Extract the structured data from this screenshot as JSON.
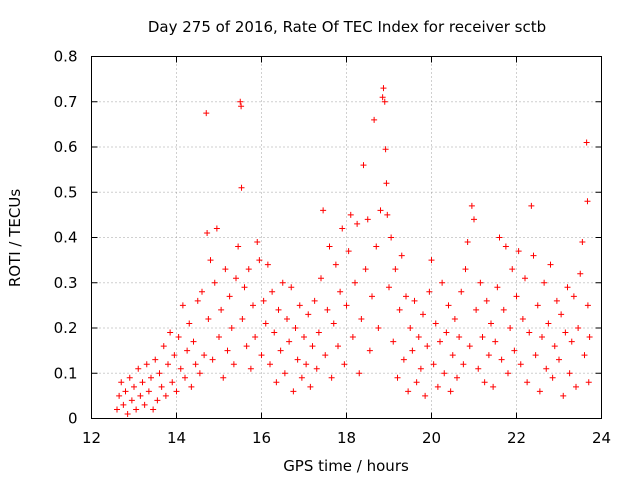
{
  "chart_data": {
    "type": "scatter",
    "title": "Day 275 of 2016, Rate Of TEC Index for receiver sctb",
    "xlabel": "GPS time / hours",
    "ylabel": "ROTI / TECUs",
    "xlim": [
      12,
      24
    ],
    "ylim": [
      0,
      0.8
    ],
    "xticks": [
      12,
      14,
      16,
      18,
      20,
      22,
      24
    ],
    "xtick_labels": [
      "12",
      "14",
      "16",
      "18",
      "20",
      "22",
      "24"
    ],
    "yticks": [
      0,
      0.1,
      0.2,
      0.3,
      0.4,
      0.5,
      0.6,
      0.7,
      0.8
    ],
    "ytick_labels": [
      "0",
      "0.1",
      "0.2",
      "0.3",
      "0.4",
      "0.5",
      "0.6",
      "0.7",
      "0.8"
    ],
    "grid": true,
    "marker": "+",
    "series": [
      {
        "name": "ROTI",
        "color": "#ff0000",
        "points": [
          [
            12.6,
            0.02
          ],
          [
            12.65,
            0.05
          ],
          [
            12.7,
            0.08
          ],
          [
            12.75,
            0.03
          ],
          [
            12.8,
            0.06
          ],
          [
            12.85,
            0.01
          ],
          [
            12.9,
            0.09
          ],
          [
            12.95,
            0.04
          ],
          [
            13.0,
            0.07
          ],
          [
            13.05,
            0.02
          ],
          [
            13.1,
            0.11
          ],
          [
            13.15,
            0.05
          ],
          [
            13.2,
            0.08
          ],
          [
            13.25,
            0.03
          ],
          [
            13.3,
            0.12
          ],
          [
            13.35,
            0.06
          ],
          [
            13.4,
            0.09
          ],
          [
            13.45,
            0.02
          ],
          [
            13.5,
            0.13
          ],
          [
            13.55,
            0.04
          ],
          [
            13.6,
            0.1
          ],
          [
            13.65,
            0.07
          ],
          [
            13.7,
            0.16
          ],
          [
            13.75,
            0.05
          ],
          [
            13.8,
            0.12
          ],
          [
            13.85,
            0.19
          ],
          [
            13.9,
            0.08
          ],
          [
            13.95,
            0.14
          ],
          [
            14.0,
            0.06
          ],
          [
            14.05,
            0.18
          ],
          [
            14.1,
            0.11
          ],
          [
            14.15,
            0.25
          ],
          [
            14.2,
            0.09
          ],
          [
            14.25,
            0.15
          ],
          [
            14.3,
            0.21
          ],
          [
            14.35,
            0.07
          ],
          [
            14.4,
            0.17
          ],
          [
            14.45,
            0.12
          ],
          [
            14.5,
            0.26
          ],
          [
            14.55,
            0.1
          ],
          [
            14.6,
            0.28
          ],
          [
            14.65,
            0.14
          ],
          [
            14.7,
            0.675
          ],
          [
            14.72,
            0.41
          ],
          [
            14.75,
            0.22
          ],
          [
            14.8,
            0.35
          ],
          [
            14.85,
            0.13
          ],
          [
            14.9,
            0.3
          ],
          [
            14.95,
            0.42
          ],
          [
            15.0,
            0.18
          ],
          [
            15.05,
            0.24
          ],
          [
            15.1,
            0.09
          ],
          [
            15.15,
            0.33
          ],
          [
            15.2,
            0.15
          ],
          [
            15.25,
            0.27
          ],
          [
            15.3,
            0.2
          ],
          [
            15.35,
            0.12
          ],
          [
            15.4,
            0.31
          ],
          [
            15.45,
            0.38
          ],
          [
            15.5,
            0.7
          ],
          [
            15.52,
            0.69
          ],
          [
            15.53,
            0.51
          ],
          [
            15.55,
            0.22
          ],
          [
            15.6,
            0.29
          ],
          [
            15.65,
            0.16
          ],
          [
            15.7,
            0.33
          ],
          [
            15.75,
            0.11
          ],
          [
            15.8,
            0.25
          ],
          [
            15.85,
            0.18
          ],
          [
            15.9,
            0.39
          ],
          [
            15.95,
            0.35
          ],
          [
            16.0,
            0.14
          ],
          [
            16.05,
            0.26
          ],
          [
            16.1,
            0.21
          ],
          [
            16.15,
            0.34
          ],
          [
            16.2,
            0.12
          ],
          [
            16.25,
            0.28
          ],
          [
            16.3,
            0.19
          ],
          [
            16.35,
            0.08
          ],
          [
            16.4,
            0.24
          ],
          [
            16.45,
            0.15
          ],
          [
            16.5,
            0.3
          ],
          [
            16.55,
            0.1
          ],
          [
            16.6,
            0.22
          ],
          [
            16.65,
            0.17
          ],
          [
            16.7,
            0.29
          ],
          [
            16.75,
            0.06
          ],
          [
            16.8,
            0.2
          ],
          [
            16.85,
            0.13
          ],
          [
            16.9,
            0.25
          ],
          [
            16.95,
            0.09
          ],
          [
            17.0,
            0.18
          ],
          [
            17.05,
            0.12
          ],
          [
            17.1,
            0.23
          ],
          [
            17.15,
            0.07
          ],
          [
            17.2,
            0.16
          ],
          [
            17.25,
            0.26
          ],
          [
            17.3,
            0.11
          ],
          [
            17.35,
            0.19
          ],
          [
            17.4,
            0.31
          ],
          [
            17.45,
            0.46
          ],
          [
            17.5,
            0.14
          ],
          [
            17.55,
            0.24
          ],
          [
            17.6,
            0.38
          ],
          [
            17.65,
            0.09
          ],
          [
            17.7,
            0.21
          ],
          [
            17.75,
            0.34
          ],
          [
            17.8,
            0.16
          ],
          [
            17.85,
            0.28
          ],
          [
            17.9,
            0.42
          ],
          [
            17.95,
            0.12
          ],
          [
            18.0,
            0.25
          ],
          [
            18.05,
            0.37
          ],
          [
            18.1,
            0.45
          ],
          [
            18.15,
            0.18
          ],
          [
            18.2,
            0.3
          ],
          [
            18.25,
            0.43
          ],
          [
            18.3,
            0.1
          ],
          [
            18.35,
            0.22
          ],
          [
            18.4,
            0.56
          ],
          [
            18.45,
            0.33
          ],
          [
            18.5,
            0.44
          ],
          [
            18.55,
            0.15
          ],
          [
            18.6,
            0.27
          ],
          [
            18.65,
            0.66
          ],
          [
            18.7,
            0.38
          ],
          [
            18.75,
            0.2
          ],
          [
            18.8,
            0.46
          ],
          [
            18.85,
            0.71
          ],
          [
            18.87,
            0.73
          ],
          [
            18.9,
            0.7
          ],
          [
            18.92,
            0.595
          ],
          [
            18.94,
            0.52
          ],
          [
            18.96,
            0.45
          ],
          [
            19.0,
            0.29
          ],
          [
            19.05,
            0.4
          ],
          [
            19.1,
            0.17
          ],
          [
            19.15,
            0.33
          ],
          [
            19.2,
            0.09
          ],
          [
            19.25,
            0.24
          ],
          [
            19.3,
            0.36
          ],
          [
            19.35,
            0.13
          ],
          [
            19.4,
            0.27
          ],
          [
            19.45,
            0.06
          ],
          [
            19.5,
            0.2
          ],
          [
            19.55,
            0.15
          ],
          [
            19.6,
            0.26
          ],
          [
            19.65,
            0.08
          ],
          [
            19.7,
            0.18
          ],
          [
            19.75,
            0.11
          ],
          [
            19.8,
            0.23
          ],
          [
            19.85,
            0.05
          ],
          [
            19.9,
            0.16
          ],
          [
            19.95,
            0.28
          ],
          [
            20.0,
            0.35
          ],
          [
            20.05,
            0.12
          ],
          [
            20.1,
            0.21
          ],
          [
            20.15,
            0.07
          ],
          [
            20.2,
            0.17
          ],
          [
            20.25,
            0.3
          ],
          [
            20.3,
            0.1
          ],
          [
            20.35,
            0.19
          ],
          [
            20.4,
            0.25
          ],
          [
            20.45,
            0.06
          ],
          [
            20.5,
            0.14
          ],
          [
            20.55,
            0.22
          ],
          [
            20.6,
            0.09
          ],
          [
            20.65,
            0.18
          ],
          [
            20.7,
            0.28
          ],
          [
            20.75,
            0.12
          ],
          [
            20.8,
            0.33
          ],
          [
            20.85,
            0.39
          ],
          [
            20.9,
            0.16
          ],
          [
            20.95,
            0.47
          ],
          [
            21.0,
            0.44
          ],
          [
            21.05,
            0.24
          ],
          [
            21.1,
            0.11
          ],
          [
            21.15,
            0.3
          ],
          [
            21.2,
            0.18
          ],
          [
            21.25,
            0.08
          ],
          [
            21.3,
            0.26
          ],
          [
            21.35,
            0.14
          ],
          [
            21.4,
            0.21
          ],
          [
            21.45,
            0.07
          ],
          [
            21.5,
            0.17
          ],
          [
            21.55,
            0.29
          ],
          [
            21.6,
            0.4
          ],
          [
            21.65,
            0.13
          ],
          [
            21.7,
            0.24
          ],
          [
            21.75,
            0.38
          ],
          [
            21.8,
            0.1
          ],
          [
            21.85,
            0.2
          ],
          [
            21.9,
            0.33
          ],
          [
            21.95,
            0.15
          ],
          [
            22.0,
            0.27
          ],
          [
            22.05,
            0.37
          ],
          [
            22.1,
            0.12
          ],
          [
            22.15,
            0.22
          ],
          [
            22.2,
            0.31
          ],
          [
            22.25,
            0.08
          ],
          [
            22.3,
            0.19
          ],
          [
            22.35,
            0.47
          ],
          [
            22.4,
            0.36
          ],
          [
            22.45,
            0.14
          ],
          [
            22.5,
            0.25
          ],
          [
            22.55,
            0.06
          ],
          [
            22.6,
            0.18
          ],
          [
            22.65,
            0.3
          ],
          [
            22.7,
            0.11
          ],
          [
            22.75,
            0.21
          ],
          [
            22.8,
            0.34
          ],
          [
            22.85,
            0.09
          ],
          [
            22.9,
            0.16
          ],
          [
            22.95,
            0.26
          ],
          [
            23.0,
            0.13
          ],
          [
            23.05,
            0.23
          ],
          [
            23.1,
            0.05
          ],
          [
            23.15,
            0.19
          ],
          [
            23.2,
            0.29
          ],
          [
            23.25,
            0.1
          ],
          [
            23.3,
            0.17
          ],
          [
            23.35,
            0.27
          ],
          [
            23.4,
            0.07
          ],
          [
            23.45,
            0.2
          ],
          [
            23.5,
            0.32
          ],
          [
            23.55,
            0.39
          ],
          [
            23.6,
            0.14
          ],
          [
            23.65,
            0.61
          ],
          [
            23.67,
            0.48
          ],
          [
            23.68,
            0.25
          ],
          [
            23.7,
            0.08
          ],
          [
            23.72,
            0.18
          ]
        ]
      }
    ]
  }
}
